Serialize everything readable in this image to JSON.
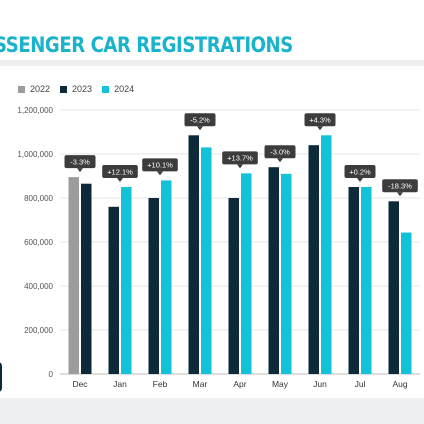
{
  "header": {
    "title": "SSENGER CAR REGISTRATIONS"
  },
  "colors": {
    "title": "#1ab3cc",
    "series_2022": "#9c9c9c",
    "series_2023": "#0d2a3a",
    "series_2024": "#12c2d8",
    "callout_bg": "#3c3c3c",
    "grid": "#e4e4e4"
  },
  "chart_data": {
    "type": "bar",
    "categories": [
      "Dec",
      "Jan",
      "Feb",
      "Mar",
      "Apr",
      "May",
      "Jun",
      "Jul",
      "Aug"
    ],
    "series": [
      {
        "name": "2022",
        "values": [
          895000,
          null,
          null,
          null,
          null,
          null,
          null,
          null,
          null
        ]
      },
      {
        "name": "2023",
        "values": [
          865000,
          760000,
          800000,
          1085000,
          800000,
          940000,
          1040000,
          850000,
          785000
        ]
      },
      {
        "name": "2024",
        "values": [
          null,
          850000,
          880000,
          1030000,
          912000,
          910000,
          1085000,
          850000,
          643000
        ]
      }
    ],
    "annotations": [
      "-3.3%",
      "+12.1%",
      "+10.1%",
      "-5.2%",
      "+13.7%",
      "-3.0%",
      "+4.3%",
      "+0.2%",
      "-18.3%"
    ],
    "yticks": [
      "0",
      "200,000",
      "400,000",
      "600,000",
      "800,000",
      "1,000,000",
      "1,200,000"
    ],
    "ylim": [
      0,
      1200000
    ],
    "grid": true,
    "legend_position": "top-left"
  }
}
